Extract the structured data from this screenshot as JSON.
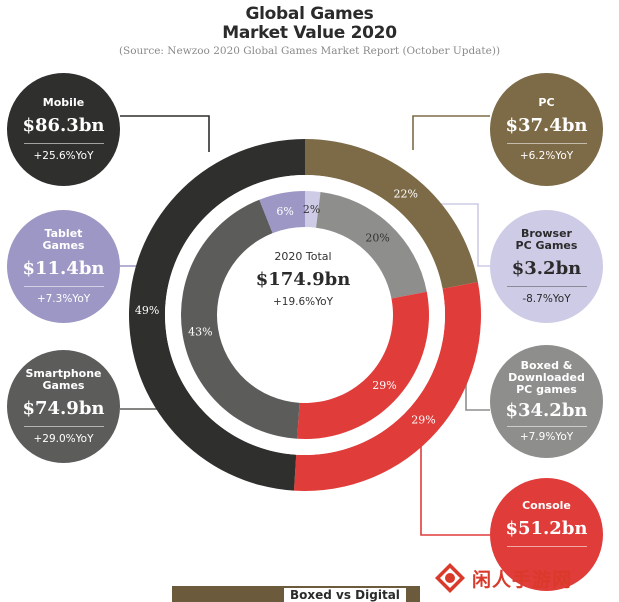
{
  "header": {
    "title_line1": "Global Games",
    "title_line2": "Market Value 2020",
    "source": "(Source: Newzoo 2020 Global Games Market Report (October Update))"
  },
  "center": {
    "label": "2020 Total",
    "value": "$174.9bn",
    "yoy": "+19.6%YoY"
  },
  "callouts": {
    "mobile": {
      "name": "Mobile",
      "value": "$86.3bn",
      "yoy": "+25.6%YoY",
      "color": "#2f2f2d"
    },
    "tablet": {
      "name": "Tablet\nGames",
      "value": "$11.4bn",
      "yoy": "+7.3%YoY",
      "color": "#9c97c4"
    },
    "smartphone": {
      "name": "Smartphone\nGames",
      "value": "$74.9bn",
      "yoy": "+29.0%YoY",
      "color": "#5c5c5a"
    },
    "pc": {
      "name": "PC",
      "value": "$37.4bn",
      "yoy": "+6.2%YoY",
      "color": "#7d6b47"
    },
    "browser": {
      "name": "Browser\nPC Games",
      "value": "$3.2bn",
      "yoy": "-8.7%YoY",
      "color": "#cdcbe6"
    },
    "boxed": {
      "name": "Boxed &\nDownloaded\nPC games",
      "value": "$34.2bn",
      "yoy": "+7.9%YoY",
      "color": "#8e8e8c"
    },
    "console": {
      "name": "Console",
      "value": "$51.2bn",
      "yoy": "",
      "color": "#e03c3a"
    }
  },
  "chart_data": {
    "type": "pie",
    "title": "Global Games Market Value 2020",
    "outer_ring": {
      "labels": [
        "PC",
        "Console",
        "Mobile"
      ],
      "values": [
        22,
        29,
        49
      ],
      "colors": [
        "#7d6b47",
        "#e03c3a",
        "#2f2f2d"
      ],
      "value_labels": [
        "22%",
        "29%",
        "49%"
      ]
    },
    "inner_ring": {
      "labels": [
        "Browser PC Games",
        "Boxed & Downloaded PC games",
        "Console",
        "Smartphone Games",
        "Tablet Games"
      ],
      "values": [
        2,
        20,
        29,
        43,
        6
      ],
      "colors": [
        "#cdcbe6",
        "#8e8e8c",
        "#e03c3a",
        "#5c5c5a",
        "#9c97c4"
      ],
      "value_labels": [
        "2%",
        "20%",
        "29%",
        "43%",
        "6%"
      ]
    }
  },
  "watermark": {
    "text": "闲人手游网",
    "logo": "fire-diamond-icon"
  },
  "footer": {
    "text": "Boxed vs Digital"
  }
}
